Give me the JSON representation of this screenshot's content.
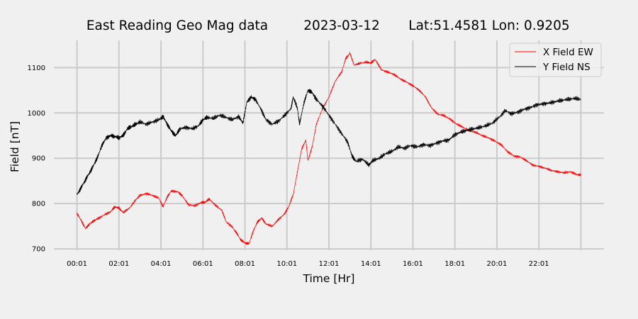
{
  "chart_data": {
    "type": "line",
    "title_parts": [
      "East Reading Geo Mag data",
      "2023-03-12",
      "Lat:51.4581  Lon: 0.9205"
    ],
    "xlabel": "Time  [Hr]",
    "ylabel": "Field  [nT]",
    "x_ticks": [
      "00:01",
      "02:01",
      "04:01",
      "06:01",
      "08:01",
      "10:01",
      "12:01",
      "14:01",
      "16:01",
      "18:01",
      "20:01",
      "22:01"
    ],
    "x_tick_hours": [
      0,
      2,
      4,
      6,
      8,
      10,
      12,
      14,
      16,
      18,
      20,
      22
    ],
    "extra_gridline_hours": [
      24
    ],
    "xlim": [
      -1.1,
      25.1
    ],
    "y_ticks": [
      700,
      800,
      900,
      1000,
      1100
    ],
    "ylim": [
      697,
      1160
    ],
    "grid": true,
    "legend_position": "top-right",
    "series": [
      {
        "name": "X Field EW",
        "color": "#ff0000",
        "points": [
          [
            0.0,
            778
          ],
          [
            0.2,
            763
          ],
          [
            0.4,
            745
          ],
          [
            0.6,
            755
          ],
          [
            0.8,
            762
          ],
          [
            1.0,
            767
          ],
          [
            1.3,
            775
          ],
          [
            1.6,
            782
          ],
          [
            1.8,
            793
          ],
          [
            2.0,
            790
          ],
          [
            2.2,
            780
          ],
          [
            2.5,
            790
          ],
          [
            2.8,
            808
          ],
          [
            3.0,
            818
          ],
          [
            3.3,
            822
          ],
          [
            3.6,
            818
          ],
          [
            3.9,
            812
          ],
          [
            4.1,
            793
          ],
          [
            4.3,
            815
          ],
          [
            4.5,
            828
          ],
          [
            4.8,
            826
          ],
          [
            5.0,
            818
          ],
          [
            5.3,
            798
          ],
          [
            5.6,
            795
          ],
          [
            5.9,
            802
          ],
          [
            6.1,
            803
          ],
          [
            6.3,
            810
          ],
          [
            6.6,
            796
          ],
          [
            6.9,
            785
          ],
          [
            7.1,
            760
          ],
          [
            7.4,
            748
          ],
          [
            7.6,
            735
          ],
          [
            7.8,
            720
          ],
          [
            8.0,
            713
          ],
          [
            8.2,
            712
          ],
          [
            8.4,
            740
          ],
          [
            8.6,
            760
          ],
          [
            8.8,
            768
          ],
          [
            9.0,
            755
          ],
          [
            9.3,
            750
          ],
          [
            9.6,
            765
          ],
          [
            9.9,
            778
          ],
          [
            10.1,
            795
          ],
          [
            10.3,
            820
          ],
          [
            10.5,
            870
          ],
          [
            10.7,
            920
          ],
          [
            10.9,
            940
          ],
          [
            11.0,
            895
          ],
          [
            11.2,
            925
          ],
          [
            11.4,
            975
          ],
          [
            11.7,
            1010
          ],
          [
            12.0,
            1035
          ],
          [
            12.3,
            1070
          ],
          [
            12.6,
            1090
          ],
          [
            12.8,
            1120
          ],
          [
            13.0,
            1132
          ],
          [
            13.2,
            1105
          ],
          [
            13.5,
            1110
          ],
          [
            13.8,
            1112
          ],
          [
            14.0,
            1110
          ],
          [
            14.2,
            1118
          ],
          [
            14.5,
            1095
          ],
          [
            14.8,
            1090
          ],
          [
            15.1,
            1085
          ],
          [
            15.4,
            1075
          ],
          [
            15.7,
            1068
          ],
          [
            16.0,
            1060
          ],
          [
            16.3,
            1050
          ],
          [
            16.6,
            1035
          ],
          [
            16.9,
            1010
          ],
          [
            17.2,
            997
          ],
          [
            17.5,
            994
          ],
          [
            17.8,
            985
          ],
          [
            18.1,
            975
          ],
          [
            18.4,
            968
          ],
          [
            18.7,
            960
          ],
          [
            19.0,
            957
          ],
          [
            19.3,
            950
          ],
          [
            19.6,
            945
          ],
          [
            19.9,
            938
          ],
          [
            20.2,
            930
          ],
          [
            20.5,
            915
          ],
          [
            20.8,
            905
          ],
          [
            21.1,
            903
          ],
          [
            21.4,
            895
          ],
          [
            21.7,
            885
          ],
          [
            22.0,
            882
          ],
          [
            22.3,
            878
          ],
          [
            22.6,
            873
          ],
          [
            22.9,
            870
          ],
          [
            23.2,
            868
          ],
          [
            23.5,
            870
          ],
          [
            23.8,
            864
          ],
          [
            24.0,
            863
          ]
        ]
      },
      {
        "name": "Y Field NS",
        "color": "#000000",
        "points": [
          [
            0.0,
            820
          ],
          [
            0.2,
            835
          ],
          [
            0.4,
            852
          ],
          [
            0.6,
            868
          ],
          [
            0.8,
            885
          ],
          [
            1.0,
            905
          ],
          [
            1.2,
            930
          ],
          [
            1.4,
            945
          ],
          [
            1.6,
            950
          ],
          [
            1.8,
            948
          ],
          [
            2.0,
            945
          ],
          [
            2.2,
            950
          ],
          [
            2.4,
            965
          ],
          [
            2.6,
            970
          ],
          [
            2.8,
            975
          ],
          [
            3.0,
            980
          ],
          [
            3.3,
            975
          ],
          [
            3.6,
            980
          ],
          [
            3.9,
            985
          ],
          [
            4.1,
            992
          ],
          [
            4.3,
            975
          ],
          [
            4.5,
            960
          ],
          [
            4.7,
            950
          ],
          [
            4.9,
            965
          ],
          [
            5.2,
            968
          ],
          [
            5.5,
            965
          ],
          [
            5.8,
            972
          ],
          [
            6.0,
            985
          ],
          [
            6.2,
            990
          ],
          [
            6.5,
            988
          ],
          [
            6.8,
            995
          ],
          [
            7.1,
            990
          ],
          [
            7.4,
            985
          ],
          [
            7.7,
            992
          ],
          [
            7.9,
            978
          ],
          [
            8.1,
            1025
          ],
          [
            8.3,
            1035
          ],
          [
            8.5,
            1030
          ],
          [
            8.8,
            1005
          ],
          [
            9.0,
            985
          ],
          [
            9.3,
            975
          ],
          [
            9.6,
            982
          ],
          [
            9.9,
            995
          ],
          [
            10.2,
            1010
          ],
          [
            10.3,
            1035
          ],
          [
            10.5,
            1010
          ],
          [
            10.6,
            975
          ],
          [
            10.8,
            1020
          ],
          [
            11.0,
            1050
          ],
          [
            11.2,
            1045
          ],
          [
            11.4,
            1030
          ],
          [
            11.7,
            1015
          ],
          [
            12.0,
            995
          ],
          [
            12.3,
            975
          ],
          [
            12.6,
            955
          ],
          [
            12.9,
            935
          ],
          [
            13.1,
            905
          ],
          [
            13.3,
            893
          ],
          [
            13.6,
            898
          ],
          [
            13.9,
            885
          ],
          [
            14.1,
            895
          ],
          [
            14.4,
            900
          ],
          [
            14.7,
            910
          ],
          [
            15.0,
            915
          ],
          [
            15.3,
            925
          ],
          [
            15.6,
            922
          ],
          [
            15.9,
            928
          ],
          [
            16.2,
            925
          ],
          [
            16.5,
            930
          ],
          [
            16.8,
            928
          ],
          [
            17.1,
            933
          ],
          [
            17.4,
            938
          ],
          [
            17.7,
            940
          ],
          [
            18.0,
            952
          ],
          [
            18.3,
            958
          ],
          [
            18.6,
            962
          ],
          [
            18.9,
            965
          ],
          [
            19.2,
            968
          ],
          [
            19.5,
            972
          ],
          [
            19.8,
            978
          ],
          [
            20.1,
            990
          ],
          [
            20.4,
            1005
          ],
          [
            20.7,
            998
          ],
          [
            21.0,
            1002
          ],
          [
            21.3,
            1008
          ],
          [
            21.6,
            1012
          ],
          [
            21.9,
            1018
          ],
          [
            22.2,
            1020
          ],
          [
            22.5,
            1022
          ],
          [
            22.8,
            1025
          ],
          [
            23.1,
            1028
          ],
          [
            23.4,
            1030
          ],
          [
            23.7,
            1032
          ],
          [
            24.0,
            1030
          ]
        ]
      }
    ]
  }
}
